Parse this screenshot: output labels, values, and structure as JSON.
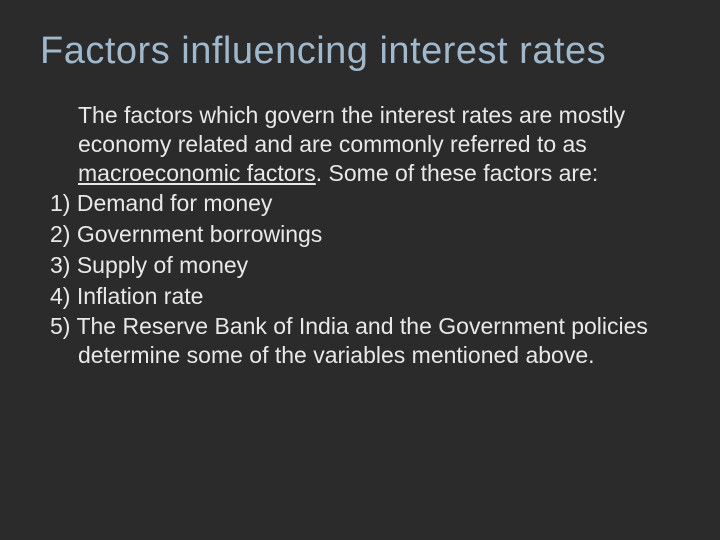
{
  "slide": {
    "background_color": "#2b2b2b",
    "title": {
      "text": "Factors influencing interest rates",
      "color": "#9fb8cc",
      "fontsize": 38,
      "fontweight": "normal"
    },
    "body": {
      "text_color": "#e8e8e8",
      "fontsize": 23,
      "intro_before": "The factors which govern the interest rates are mostly economy related and are commonly referred to as ",
      "underlined": "macroeconomic factors",
      "intro_after": ". Some of these factors are:",
      "items": [
        {
          "num": "1)",
          "text": "Demand for money"
        },
        {
          "num": "2)",
          "text": "Government borrowings"
        },
        {
          "num": "3)",
          "text": "Supply of money"
        },
        {
          "num": "4)",
          "text": "Inflation rate"
        },
        {
          "num": "5)",
          "text": "The Reserve Bank of India and the Government policies determine some of the variables mentioned above."
        }
      ]
    }
  }
}
